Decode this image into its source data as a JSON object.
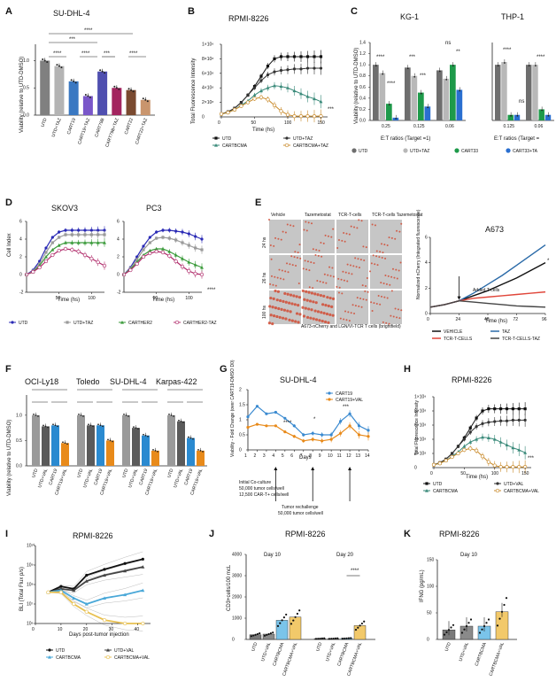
{
  "panels": {
    "A": {
      "letter": "A",
      "title": "SU-DHL-4",
      "ylabel": "Viability (relative to UTD-DMSO)",
      "sig": [
        "****",
        "****",
        "****",
        "***",
        "***",
        "****"
      ]
    },
    "B": {
      "letter": "B",
      "title": "RPMI-8226",
      "ylabel": "Total Fluorescence Intensity",
      "xlabel": "Time (hs)",
      "sig": "***",
      "legend": [
        "UTD",
        "UTD+TAZ",
        "CARTBCMA",
        "CARTBCMA+TAZ"
      ]
    },
    "C": {
      "letter": "C",
      "title_left": "KG-1",
      "title_right": "THP-1",
      "ylabel": "Viability (relative to UTD-DMSO)",
      "xlabel_left": "E:T ratios (Target =1)",
      "xlabel_right": "E:T ratios (Target =",
      "ratios_left": [
        "0.25",
        "0.125",
        "0.06"
      ],
      "ratios_right": [
        "0.125",
        "0.06"
      ],
      "legend": [
        "UTD",
        "UTD+TAZ",
        "CART33",
        "CART33+TA"
      ],
      "sig_left": [
        "****",
        "****",
        "***",
        "***",
        "ns",
        "**"
      ],
      "sig_right": [
        "****",
        "ns",
        "****"
      ]
    },
    "D": {
      "letter": "D",
      "title_left": "SKOV3",
      "title_right": "PC3",
      "ylabel": "Cell Index",
      "xlabel": "Time (hs)",
      "sig": "****",
      "legend": [
        "UTD",
        "UTD+TAZ",
        "CARTHER2",
        "CARTHER2-TAZ"
      ]
    },
    "E": {
      "letter": "E",
      "cols": [
        "Vehicle",
        "Tazemetostat",
        "TCR-T-cells",
        "TCR-T-cells Tazemetostat"
      ],
      "rows": [
        "24 hs",
        "26 hs",
        "100 hs"
      ],
      "caption": "A673-nCherry    and LGN/VI-TCR T cells (brightfield)",
      "title": "A673",
      "ylabel": "Normalized nCherry (Integrated fluorescence)",
      "xlabel": "Time (hs)",
      "annotation": "Added T-cells",
      "sig": "*",
      "legend": [
        "VEHICLE",
        "TAZ",
        "TCR-T-CELLS",
        "TCR-T-CELLS-TAZ"
      ]
    },
    "F": {
      "letter": "F",
      "lines": [
        "OCI-Ly18",
        "Toledo",
        "SU-DHL-4",
        "Karpas-422"
      ],
      "ylabel": "Viability (relative to UTD-DMSO)",
      "groups": [
        "UTD",
        "UTD+VAL",
        "CART19",
        "CART19+VAL"
      ]
    },
    "G": {
      "letter": "G",
      "title": "SU-DHL-4",
      "ylabel": "Viability - Fold Change (over CART19-DMSO D0)",
      "xlabel": "Days",
      "legend": [
        "CART19",
        "CART19+VAL"
      ],
      "notes": [
        "Initial Co-culture",
        "50,000 tumor cells/well",
        "12,500 CAR-T+ cells/well"
      ],
      "rechallenge": [
        "Tumor rechallenge",
        "50,000 tumor cells/well"
      ],
      "sig": [
        "****",
        "*",
        "***"
      ]
    },
    "H": {
      "letter": "H",
      "title": "RPMI-8226",
      "ylabel": "Total Fluorescence Intensity",
      "xlabel": "Time (hs)",
      "sig": "***",
      "legend": [
        "UTD",
        "UTD+VAL",
        "CARTBCMA",
        "CARTBCMA+VAL"
      ]
    },
    "I": {
      "letter": "I",
      "title": "RPMI-8226",
      "ylabel": "BLI (Total Flux p/s)",
      "xlabel": "Days post-tumor injection",
      "legend": [
        "UTD",
        "UTD+VAL",
        "CARTBCMA",
        "CARTBCMA+VAL"
      ]
    },
    "J": {
      "letter": "J",
      "title": "RPMI-8226",
      "ylabel": "CD3+cells/100 mcL",
      "day_left": "Day 10",
      "day_right": "Day 20",
      "sig": "****",
      "groups": [
        "UTD",
        "UTD+VAL",
        "CARTBCMA",
        "CARTBCMA+VAL"
      ]
    },
    "K": {
      "letter": "K",
      "title": "RPMI-8226",
      "ylabel": "IFNG (pg/mL)",
      "day": "Day 10",
      "groups": [
        "UTD",
        "UTD+VAL",
        "CARTBCMA",
        "CARTBCMA+VAL"
      ]
    }
  },
  "chart_data": [
    {
      "type": "bar",
      "panel": "A",
      "title": "SU-DHL-4",
      "ylabel": "Viability (relative to UTD-DMSO)",
      "ylim": [
        0,
        1.3
      ],
      "categories": [
        "UTD",
        "UTD+TAZ",
        "CART19",
        "CART19+TAZ",
        "CART79B",
        "CART79B+TAZ",
        "CART22",
        "CART22+TAZ"
      ],
      "values": [
        1.0,
        0.9,
        0.62,
        0.35,
        0.8,
        0.5,
        0.46,
        0.28
      ],
      "colors": [
        "#808080",
        "#b4b4b4",
        "#3a78c2",
        "#7a57c9",
        "#4f4fb0",
        "#a3245f",
        "#7a4a30",
        "#c9956d"
      ]
    },
    {
      "type": "line",
      "panel": "B",
      "title": "RPMI-8226",
      "ylabel": "Total Fluorescence Intensity",
      "xlabel": "Time (hs)",
      "x": [
        0,
        10,
        20,
        30,
        40,
        50,
        60,
        70,
        80,
        90,
        100,
        110,
        120,
        130,
        140,
        150
      ],
      "ylim": [
        0,
        10
      ],
      "xlim": [
        0,
        160
      ],
      "series": [
        {
          "name": "UTD",
          "values": [
            0.4,
            0.7,
            1.2,
            2,
            3,
            4.2,
            5.6,
            7,
            8,
            8.3,
            8.3,
            8.3,
            8.3,
            8.3,
            8.3,
            8.3
          ]
        },
        {
          "name": "UTD+TAZ",
          "values": [
            0.4,
            0.7,
            1.2,
            2,
            3,
            4,
            5,
            5.8,
            6.2,
            6.4,
            6.5,
            6.6,
            6.6,
            6.7,
            6.7,
            6.7
          ]
        },
        {
          "name": "CARTBCMA",
          "values": [
            0.4,
            0.6,
            1,
            1.6,
            2.2,
            3,
            3.6,
            4,
            4.3,
            4.2,
            4.0,
            3.6,
            3.2,
            2.8,
            2.5,
            2.1
          ]
        },
        {
          "name": "CARTBCMA+TAZ",
          "values": [
            0.4,
            0.6,
            1,
            1.5,
            2,
            2.5,
            2.7,
            2.4,
            1.6,
            0.8,
            0.3,
            0.1,
            0.1,
            0.1,
            0.1,
            0.1
          ]
        }
      ]
    },
    {
      "type": "bar",
      "panel": "C-left",
      "title": "KG-1",
      "xlabel": "E:T ratios (Target =1)",
      "ylim": [
        0,
        1.4
      ],
      "categories": [
        "0.25",
        "0.125",
        "0.06"
      ],
      "series": [
        {
          "name": "UTD",
          "values": [
            1.0,
            0.95,
            0.9
          ]
        },
        {
          "name": "UTD+TAZ",
          "values": [
            0.85,
            0.8,
            0.75
          ]
        },
        {
          "name": "CART33",
          "values": [
            0.3,
            0.5,
            1.0
          ]
        },
        {
          "name": "CART33+TA",
          "values": [
            0.05,
            0.25,
            0.55
          ]
        }
      ]
    },
    {
      "type": "bar",
      "panel": "C-right",
      "title": "THP-1",
      "xlabel": "E:T ratios (Target =",
      "ylim": [
        0,
        1.4
      ],
      "categories": [
        "0.125",
        "0.06"
      ],
      "series": [
        {
          "name": "UTD",
          "values": [
            1.0,
            1.0
          ]
        },
        {
          "name": "UTD+TAZ",
          "values": [
            1.05,
            1.0
          ]
        },
        {
          "name": "CART33",
          "values": [
            0.1,
            0.2
          ]
        },
        {
          "name": "CART33+TA",
          "values": [
            0.1,
            0.1
          ]
        }
      ]
    },
    {
      "type": "line",
      "panel": "D-left",
      "title": "SKOV3",
      "ylabel": "Cell Index",
      "xlabel": "Time (hs)",
      "xlim": [
        0,
        120
      ],
      "ylim": [
        -2,
        6
      ],
      "x": [
        0,
        10,
        20,
        30,
        40,
        50,
        60,
        70,
        80,
        90,
        100,
        110,
        120
      ],
      "series": [
        {
          "name": "UTD",
          "values": [
            0,
            0.5,
            1.5,
            3,
            4.2,
            4.8,
            5,
            5,
            5,
            5,
            5,
            5,
            5
          ]
        },
        {
          "name": "UTD+TAZ",
          "values": [
            0,
            0.4,
            1.2,
            2.5,
            3.6,
            4.2,
            4.5,
            4.5,
            4.5,
            4.5,
            4.5,
            4.5,
            4.5
          ]
        },
        {
          "name": "CARTHER2",
          "values": [
            0,
            0.3,
            1,
            2,
            2.8,
            3.3,
            3.6,
            3.6,
            3.6,
            3.6,
            3.6,
            3.6,
            3.6
          ]
        },
        {
          "name": "CARTHER2-TAZ",
          "values": [
            0,
            0.3,
            0.8,
            1.5,
            2.2,
            2.7,
            2.9,
            2.8,
            2.6,
            2.2,
            1.8,
            1.4,
            1.0
          ]
        }
      ]
    },
    {
      "type": "line",
      "panel": "D-right",
      "title": "PC3",
      "ylabel": "Cell Index",
      "xlabel": "Time (hs)",
      "xlim": [
        0,
        120
      ],
      "ylim": [
        -2,
        6
      ],
      "x": [
        0,
        10,
        20,
        30,
        40,
        50,
        60,
        70,
        80,
        90,
        100,
        110,
        120
      ],
      "series": [
        {
          "name": "UTD",
          "values": [
            0,
            0.8,
            2,
            3.2,
            4.2,
            4.8,
            5,
            5,
            4.9,
            4.8,
            4.6,
            4.3,
            4
          ]
        },
        {
          "name": "UTD+TAZ",
          "values": [
            0,
            0.7,
            1.7,
            2.8,
            3.6,
            4.1,
            4.2,
            4.1,
            3.9,
            3.6,
            3.3,
            3,
            2.8
          ]
        },
        {
          "name": "CARTHER2",
          "values": [
            0,
            0.6,
            1.4,
            2.2,
            2.7,
            2.9,
            2.9,
            2.6,
            2.2,
            1.8,
            1.4,
            1.1,
            0.8
          ]
        },
        {
          "name": "CARTHER2-TAZ",
          "values": [
            0,
            0.5,
            1.2,
            2,
            2.4,
            2.6,
            2.5,
            2.1,
            1.5,
            0.9,
            0.4,
            0.1,
            0
          ]
        }
      ]
    },
    {
      "type": "line",
      "panel": "E",
      "title": "A673",
      "xlabel": "Time (hs)",
      "xlim": [
        0,
        96
      ],
      "ylim": [
        0,
        6
      ],
      "x": [
        0,
        12,
        24,
        36,
        48,
        60,
        72,
        84,
        96
      ],
      "series": [
        {
          "name": "VEHICLE",
          "values": [
            0.5,
            0.7,
            1,
            1.4,
            1.8,
            2.3,
            2.8,
            3.4,
            4
          ]
        },
        {
          "name": "TAZ",
          "values": [
            0.5,
            0.7,
            1,
            1.6,
            2.3,
            3,
            3.8,
            4.6,
            5.4
          ]
        },
        {
          "name": "TCR-T-CELLS",
          "values": [
            0.5,
            0.7,
            1,
            1.2,
            1.3,
            1.4,
            1.5,
            1.6,
            1.7
          ]
        },
        {
          "name": "TCR-T-CELLS-TAZ",
          "values": [
            0.5,
            0.7,
            1,
            0.9,
            0.8,
            0.7,
            0.6,
            0.55,
            0.5
          ]
        }
      ]
    },
    {
      "type": "bar",
      "panel": "F",
      "ylabel": "Viability (relative to UTD-DMSO)",
      "ylim": [
        0,
        1.4
      ],
      "categories": [
        "OCI-Ly18",
        "Toledo",
        "SU-DHL-4",
        "Karpas-422"
      ],
      "series": [
        {
          "name": "UTD",
          "values": [
            1.0,
            1.0,
            1.0,
            1.0
          ]
        },
        {
          "name": "UTD+VAL",
          "values": [
            0.78,
            0.8,
            0.75,
            0.88
          ]
        },
        {
          "name": "CART19",
          "values": [
            0.8,
            0.8,
            0.6,
            0.55
          ]
        },
        {
          "name": "CART19+VAL",
          "values": [
            0.45,
            0.5,
            0.3,
            0.3
          ]
        }
      ]
    },
    {
      "type": "line",
      "panel": "G",
      "title": "SU-DHL-4",
      "xlabel": "Days",
      "ylim": [
        0,
        2
      ],
      "x": [
        1,
        2,
        3,
        4,
        5,
        6,
        7,
        8,
        9,
        10,
        11,
        12,
        13,
        14
      ],
      "series": [
        {
          "name": "CART19",
          "values": [
            1.1,
            1.45,
            1.2,
            1.25,
            1.05,
            0.8,
            0.5,
            0.55,
            0.5,
            0.5,
            0.95,
            1.2,
            0.8,
            0.65
          ]
        },
        {
          "name": "CART19+VAL",
          "values": [
            0.75,
            0.85,
            0.8,
            0.8,
            0.6,
            0.45,
            0.3,
            0.35,
            0.3,
            0.35,
            0.55,
            0.8,
            0.5,
            0.45
          ]
        }
      ]
    },
    {
      "type": "line",
      "panel": "H",
      "title": "RPMI-8226",
      "xlabel": "Time (hs)",
      "xlim": [
        0,
        160
      ],
      "ylim": [
        0,
        10
      ],
      "x": [
        0,
        10,
        20,
        30,
        40,
        50,
        60,
        70,
        80,
        90,
        100,
        110,
        120,
        130,
        140,
        150
      ],
      "series": [
        {
          "name": "UTD",
          "values": [
            0.4,
            0.7,
            1.2,
            2,
            3,
            4.2,
            5.6,
            7,
            8,
            8.3,
            8.3,
            8.3,
            8.3,
            8.3,
            8.3,
            8.3
          ]
        },
        {
          "name": "UTD+VAL",
          "values": [
            0.4,
            0.7,
            1.2,
            2,
            3,
            4,
            5,
            5.8,
            6.2,
            6.4,
            6.5,
            6.6,
            6.6,
            6.7,
            6.7,
            6.7
          ]
        },
        {
          "name": "CARTBCMA",
          "values": [
            0.4,
            0.6,
            1,
            1.6,
            2.2,
            3,
            3.6,
            4,
            4.3,
            4.2,
            4.0,
            3.6,
            3.2,
            2.8,
            2.5,
            2.1
          ]
        },
        {
          "name": "CARTBCMA+VAL",
          "values": [
            0.4,
            0.6,
            1,
            1.5,
            2,
            2.5,
            2.7,
            2.4,
            1.6,
            0.8,
            0.3,
            0.1,
            0.1,
            0.1,
            0.1,
            0.1
          ]
        }
      ]
    },
    {
      "type": "line",
      "panel": "I",
      "title": "RPMI-8226",
      "xlabel": "Days post-tumor injection",
      "ylim": [
        1000000.0,
        10000000000.0
      ],
      "x": [
        5,
        10,
        15,
        20,
        27,
        35,
        42
      ],
      "series": [
        {
          "name": "UTD",
          "values": [
            40000000.0,
            80000000.0,
            60000000.0,
            300000000.0,
            600000000.0,
            1200000000.0,
            2000000000.0
          ]
        },
        {
          "name": "UTD+VAL",
          "values": [
            40000000.0,
            60000000.0,
            50000000.0,
            150000000.0,
            300000000.0,
            500000000.0,
            800000000.0
          ]
        },
        {
          "name": "CARTBCMA",
          "values": [
            40000000.0,
            50000000.0,
            20000000.0,
            10000000.0,
            20000000.0,
            30000000.0,
            50000000.0
          ]
        },
        {
          "name": "CARTBCMA+VAL",
          "values": [
            40000000.0,
            40000000.0,
            10000000.0,
            4000000.0,
            1500000.0,
            1000000.0,
            1000000.0
          ]
        }
      ]
    },
    {
      "type": "bar",
      "panel": "J",
      "title": "RPMI-8226",
      "ylabel": "CD3+cells/100 mcL",
      "ylim": [
        0,
        4000
      ],
      "categories": [
        "Day 10",
        "Day 20"
      ],
      "series": [
        {
          "name": "UTD",
          "values": [
            220,
            40
          ]
        },
        {
          "name": "UTD+VAL",
          "values": [
            250,
            40
          ]
        },
        {
          "name": "CARTBCMA",
          "values": [
            900,
            50
          ]
        },
        {
          "name": "CARTBCMA+VAL",
          "values": [
            1050,
            650
          ]
        }
      ]
    },
    {
      "type": "bar",
      "panel": "K",
      "title": "RPMI-8226",
      "ylabel": "IFNG (pg/mL)",
      "ylim": [
        0,
        150
      ],
      "categories": [
        "UTD",
        "UTD+VAL",
        "CARTBCMA",
        "CARTBCMA+VAL"
      ],
      "values": [
        18,
        25,
        25,
        52
      ]
    }
  ]
}
